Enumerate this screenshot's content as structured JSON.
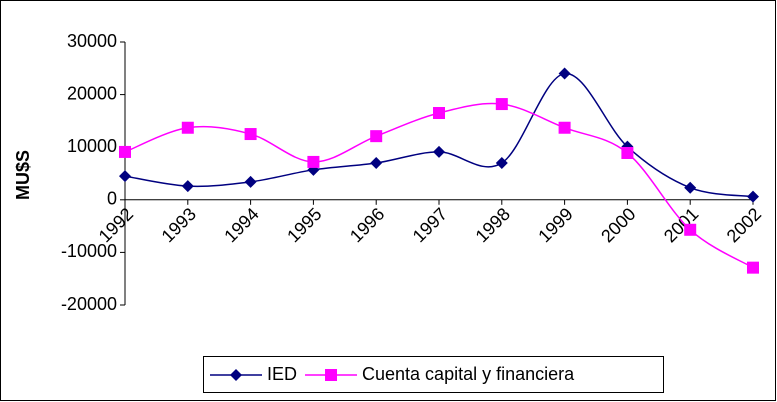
{
  "chart_data": {
    "type": "line",
    "y_label": "MU$S",
    "categories": [
      "1992",
      "1993",
      "1994",
      "1995",
      "1996",
      "1997",
      "1998",
      "1999",
      "2000",
      "2001",
      "2002"
    ],
    "series": [
      {
        "name": "IED",
        "color": "#000080",
        "marker": "diamond",
        "values": [
          4500,
          2600,
          3400,
          5700,
          7000,
          9100,
          7000,
          24000,
          10100,
          2300,
          600
        ]
      },
      {
        "name": "Cuenta capital y financiera",
        "color": "#ff00ff",
        "marker": "square",
        "values": [
          9100,
          13700,
          12500,
          7200,
          12100,
          16500,
          18200,
          13700,
          8900,
          -5700,
          -12900
        ]
      }
    ],
    "ylim": [
      -20000,
      30000
    ],
    "yticks": [
      -20000,
      -10000,
      0,
      10000,
      20000,
      30000
    ],
    "smooth": true,
    "legend": "bottom"
  }
}
